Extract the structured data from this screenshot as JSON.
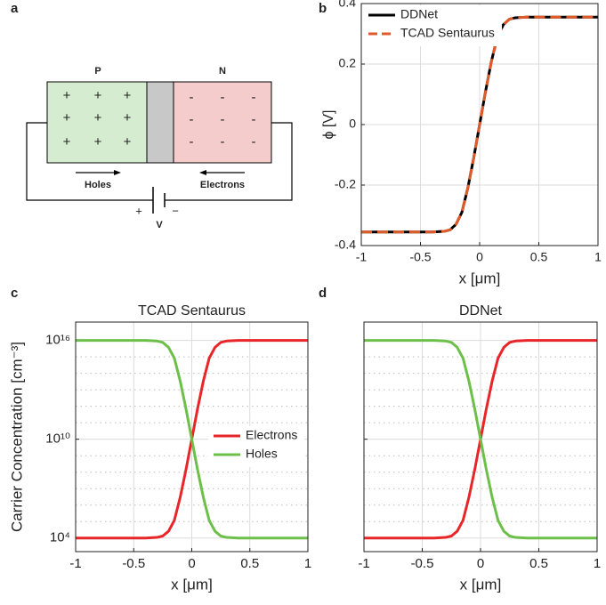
{
  "diagram": {
    "panel": "a",
    "p_label": "P",
    "n_label": "N",
    "p_sign": "+",
    "n_sign": "-",
    "holes": "Holes",
    "electrons": "Electrons",
    "battery_plus": "+",
    "battery_minus": "−",
    "voltage": "V"
  },
  "chart_data": [
    {
      "type": "line",
      "panel": "b",
      "xlabel": "x [μm]",
      "ylabel": "ϕ [V]",
      "x": [
        -1,
        -0.8,
        -0.6,
        -0.4,
        -0.3,
        -0.25,
        -0.2,
        -0.15,
        -0.1,
        -0.05,
        0,
        0.05,
        0.1,
        0.15,
        0.2,
        0.25,
        0.3,
        0.4,
        0.6,
        0.8,
        1
      ],
      "series": [
        {
          "name": "DDNet",
          "color": "#000000",
          "linestyle": "solid",
          "values": [
            -0.355,
            -0.355,
            -0.355,
            -0.355,
            -0.353,
            -0.348,
            -0.33,
            -0.29,
            -0.21,
            -0.11,
            0,
            0.11,
            0.21,
            0.29,
            0.33,
            0.348,
            0.353,
            0.355,
            0.355,
            0.355,
            0.355
          ]
        },
        {
          "name": "TCAD Sentaurus",
          "color": "#e05a2a",
          "linestyle": "dashed",
          "values": [
            -0.355,
            -0.355,
            -0.355,
            -0.355,
            -0.353,
            -0.348,
            -0.33,
            -0.29,
            -0.21,
            -0.11,
            0,
            0.11,
            0.21,
            0.29,
            0.33,
            0.348,
            0.353,
            0.355,
            0.355,
            0.355,
            0.355
          ]
        }
      ],
      "xlim": [
        -1,
        1
      ],
      "xticks": [
        -1,
        -0.5,
        0,
        0.5,
        1
      ],
      "ylim": [
        -0.4,
        0.4
      ],
      "yticks": [
        -0.4,
        -0.2,
        0,
        0.2,
        0.4
      ],
      "grid": true,
      "legend": "upper left"
    },
    {
      "type": "line",
      "panel": "c",
      "title": "TCAD Sentaurus",
      "xlabel": "x [μm]",
      "ylabel": "Carrier Concentration [cm⁻³]",
      "yscale": "log",
      "x": [
        -1,
        -0.8,
        -0.6,
        -0.4,
        -0.3,
        -0.25,
        -0.2,
        -0.15,
        -0.1,
        -0.05,
        0,
        0.05,
        0.1,
        0.15,
        0.2,
        0.25,
        0.3,
        0.4,
        0.6,
        0.8,
        1
      ],
      "series": [
        {
          "name": "Electrons",
          "color": "#e8262a",
          "linestyle": "solid",
          "values": [
            10000,
            10000,
            10000,
            10000,
            10900,
            13200,
            26000,
            120000,
            2900000,
            140000000,
            10000000000,
            720000000000,
            35000000000000,
            830000000000000,
            3800000000000000,
            7600000000000000,
            9200000000000000,
            10000000000000000,
            10000000000000000,
            10000000000000000,
            10000000000000000
          ]
        },
        {
          "name": "Holes",
          "color": "#6cc04a",
          "linestyle": "solid",
          "values": [
            10000000000000000,
            10000000000000000,
            10000000000000000,
            10000000000000000,
            9200000000000000,
            7600000000000000,
            3800000000000000,
            830000000000000,
            35000000000000,
            720000000000,
            10000000000,
            140000000,
            2900000,
            120000,
            26000,
            13200,
            10900,
            10000,
            10000,
            10000,
            10000
          ]
        }
      ],
      "xlim": [
        -1,
        1
      ],
      "xticks": [
        -1,
        -0.5,
        0,
        0.5,
        1
      ],
      "ylim": [
        1500,
        130000000000000000
      ],
      "yticks": [
        {
          "value": 10000,
          "label": "10⁴"
        },
        {
          "value": 10000000000,
          "label": "10¹⁰"
        },
        {
          "value": 10000000000000000,
          "label": "10¹⁶"
        }
      ],
      "yticks_minor": [
        100000,
        1000000,
        10000000,
        100000000,
        1000000000,
        100000000000,
        1000000000000,
        10000000000000,
        100000000000000,
        1000000000000000
      ],
      "grid": true,
      "legend": "right"
    },
    {
      "type": "line",
      "panel": "d",
      "title": "DDNet",
      "xlabel": "x [μm]",
      "yscale": "log",
      "x": [
        -1,
        -0.8,
        -0.6,
        -0.4,
        -0.3,
        -0.25,
        -0.2,
        -0.15,
        -0.1,
        -0.05,
        0,
        0.05,
        0.1,
        0.15,
        0.2,
        0.25,
        0.3,
        0.4,
        0.6,
        0.8,
        1
      ],
      "series": [
        {
          "name": "Electrons",
          "color": "#e8262a",
          "linestyle": "solid",
          "values": [
            10000,
            10000,
            10000,
            10000,
            10900,
            13200,
            26000,
            120000,
            2900000,
            140000000,
            10000000000,
            720000000000,
            35000000000000,
            830000000000000,
            3800000000000000,
            7600000000000000,
            9200000000000000,
            10000000000000000,
            10000000000000000,
            10000000000000000,
            10000000000000000
          ]
        },
        {
          "name": "Holes",
          "color": "#6cc04a",
          "linestyle": "solid",
          "values": [
            10000000000000000,
            10000000000000000,
            10000000000000000,
            10000000000000000,
            9200000000000000,
            7600000000000000,
            3800000000000000,
            830000000000000,
            35000000000000,
            720000000000,
            10000000000,
            140000000,
            2900000,
            120000,
            26000,
            13200,
            10900,
            10000,
            10000,
            10000,
            10000
          ]
        }
      ],
      "xlim": [
        -1,
        1
      ],
      "xticks": [
        -1,
        -0.5,
        0,
        0.5,
        1
      ],
      "ylim": [
        1500,
        130000000000000000
      ],
      "yticks": [
        10000,
        10000000000,
        10000000000000000
      ],
      "show_ytick_labels": false,
      "yticks_minor": [
        100000,
        1000000,
        10000000,
        100000000,
        1000000000,
        100000000000,
        1000000000000,
        10000000000000,
        100000000000000,
        1000000000000000
      ],
      "grid": true
    }
  ]
}
